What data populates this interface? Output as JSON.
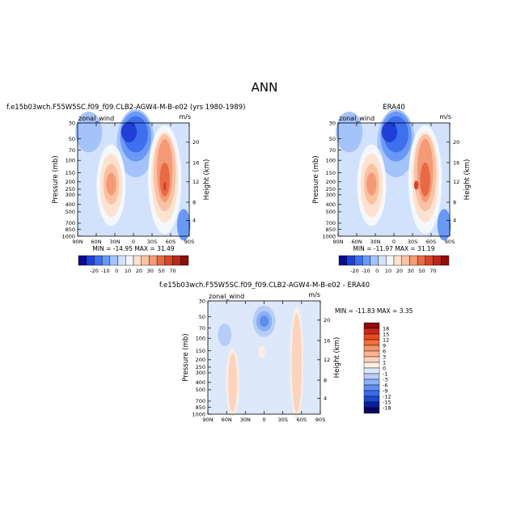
{
  "figure_title": "ANN",
  "chart_data": [
    {
      "type": "heatmap",
      "title": "f.e15b03wch.F55W5SC.f09_f09.CLB2-AGW4-M-B-e02 (yrs 1980-1989)",
      "variable_label": "zonal_wind",
      "units_label": "m/s",
      "xlabel": "",
      "ylabel": "Pressure (mb)",
      "ylabel_right": "Height (km)",
      "x_ticks": [
        "90N",
        "60N",
        "30N",
        "0",
        "30S",
        "60S",
        "90S"
      ],
      "y_ticks": [
        "30",
        "50",
        "70",
        "100",
        "150",
        "200",
        "250",
        "300",
        "400",
        "500",
        "700",
        "850",
        "1000"
      ],
      "y_right_ticks": [
        "20",
        "16",
        "12",
        "8",
        "4"
      ],
      "colorbar_labels": [
        "-20",
        "-10",
        "0",
        "10",
        "20",
        "30",
        "50",
        "70"
      ],
      "colorbar_colors": [
        "#0a0a8c",
        "#1f3fd6",
        "#3d6fef",
        "#6a98f5",
        "#a5c3fb",
        "#d2e2fd",
        "#f4f7fc",
        "#fde3cf",
        "#f9c2a3",
        "#f49a77",
        "#e86a45",
        "#d6452a",
        "#b8291c",
        "#8c0d0d"
      ],
      "min": -14.95,
      "max": 31.49,
      "stats_text": "MIN = -14.95   MAX = 31.49"
    },
    {
      "type": "heatmap",
      "title": "ERA40",
      "variable_label": "zonal_wind",
      "units_label": "m/s",
      "xlabel": "",
      "ylabel": "Pressure (mb)",
      "ylabel_right": "Height (km)",
      "x_ticks": [
        "90N",
        "60N",
        "30N",
        "0",
        "30S",
        "60S",
        "90S"
      ],
      "y_ticks": [
        "30",
        "50",
        "70",
        "100",
        "150",
        "200",
        "250",
        "300",
        "400",
        "500",
        "700",
        "850",
        "1000"
      ],
      "y_right_ticks": [
        "20",
        "16",
        "12",
        "8",
        "4"
      ],
      "colorbar_labels": [
        "-20",
        "-10",
        "0",
        "10",
        "20",
        "30",
        "50",
        "70"
      ],
      "colorbar_colors": [
        "#0a0a8c",
        "#1f3fd6",
        "#3d6fef",
        "#6a98f5",
        "#a5c3fb",
        "#d2e2fd",
        "#f4f7fc",
        "#fde3cf",
        "#f9c2a3",
        "#f49a77",
        "#e86a45",
        "#d6452a",
        "#b8291c",
        "#8c0d0d"
      ],
      "min": -11.97,
      "max": 31.19,
      "stats_text": "MIN = -11.97   MAX = 31.19"
    },
    {
      "type": "heatmap",
      "title": "f.e15b03wch.F55W5SC.f09_f09.CLB2-AGW4-M-B-e02 - ERA40",
      "variable_label": "zonal_wind",
      "units_label": "m/s",
      "xlabel": "",
      "ylabel": "Pressure (mb)",
      "ylabel_right": "Height (km)",
      "x_ticks": [
        "90N",
        "60N",
        "30N",
        "0",
        "30S",
        "60S",
        "90S"
      ],
      "y_ticks": [
        "30",
        "50",
        "70",
        "100",
        "150",
        "200",
        "250",
        "300",
        "400",
        "500",
        "700",
        "850",
        "1000"
      ],
      "y_right_ticks": [
        "20",
        "16",
        "12",
        "8",
        "4"
      ],
      "colorbar_labels": [
        "18",
        "15",
        "12",
        "9",
        "6",
        "3",
        "1",
        "0",
        "-1",
        "-3",
        "-6",
        "-9",
        "-12",
        "-15",
        "-18"
      ],
      "colorbar_colors": [
        "#8c0d0d",
        "#c8281a",
        "#e84a24",
        "#f26e3c",
        "#f7946a",
        "#fab493",
        "#fcd4bd",
        "#fbeee4",
        "#dde8fb",
        "#b7cdf8",
        "#8cb0f3",
        "#5f8ef0",
        "#3a6be6",
        "#1f47cf",
        "#0b1f9e",
        "#07085e"
      ],
      "min": -11.83,
      "max": 3.35,
      "stats_text": "MIN = -11.83   MAX =   3.35"
    }
  ]
}
